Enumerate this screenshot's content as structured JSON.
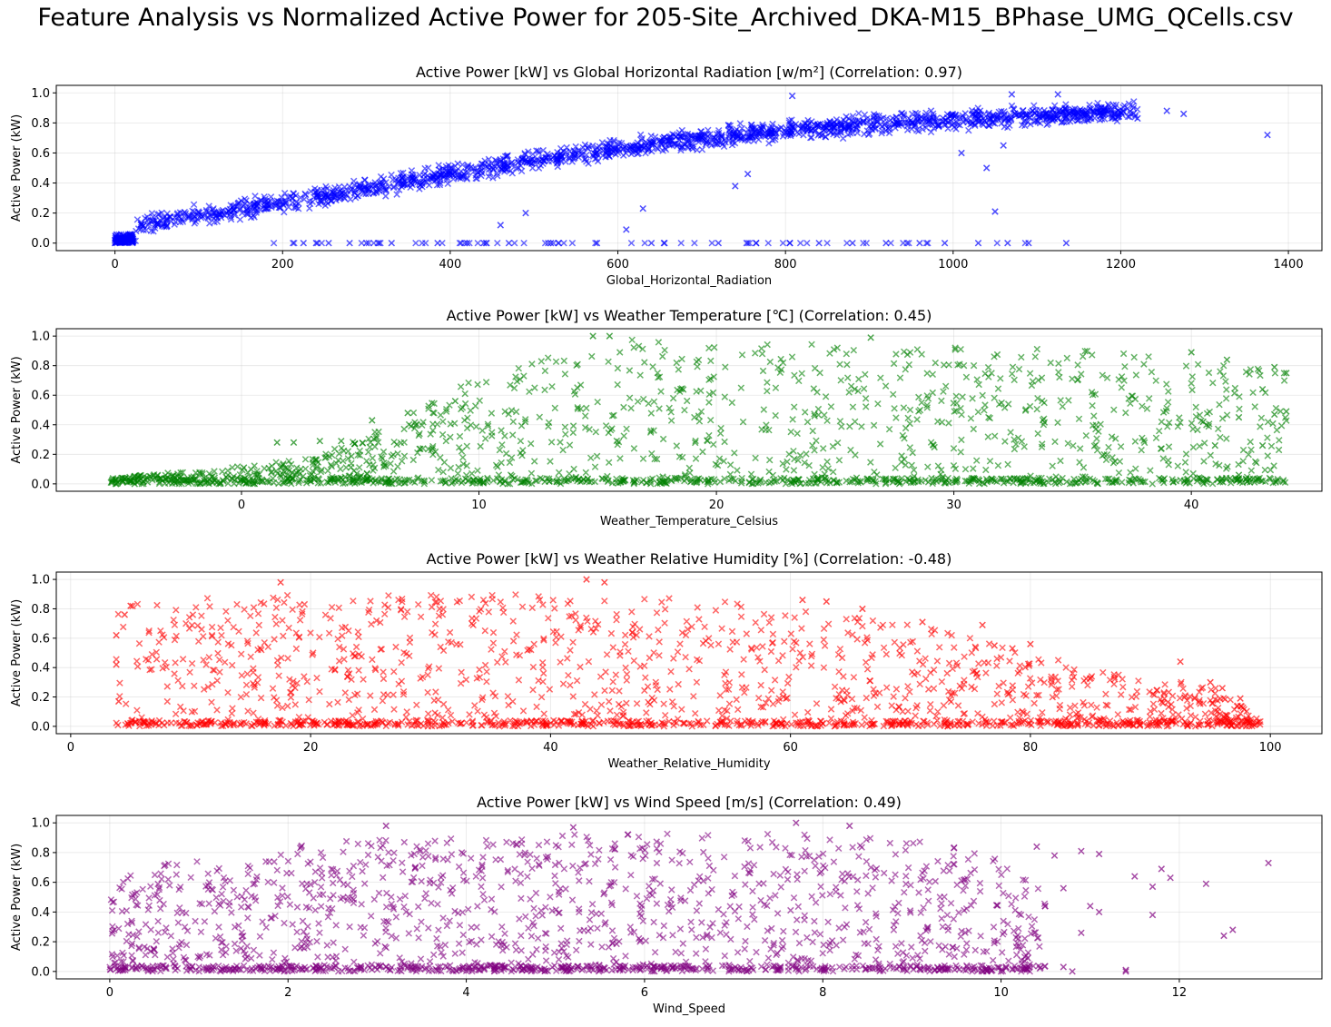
{
  "figure": {
    "suptitle": "Feature Analysis vs Normalized Active Power for 205-Site_Archived_DKA-M15_BPhase_UMG_QCells.csv"
  },
  "chart_data": [
    {
      "type": "scatter",
      "title": "Active Power [kW] vs Global Horizontal Radiation [w/m²] (Correlation: 0.97)",
      "xlabel": "Global_Horizontal_Radiation",
      "ylabel": "Active Power (kW)",
      "color": "#0000ff",
      "marker": "x",
      "grid": true,
      "xlim": [
        -70,
        1440
      ],
      "ylim": [
        -0.05,
        1.05
      ],
      "xticks": [
        0,
        200,
        400,
        600,
        800,
        1000,
        1200,
        1400
      ],
      "yticks": [
        0.0,
        0.2,
        0.4,
        0.6,
        0.8,
        1.0
      ],
      "ytick_labels": [
        "0.0",
        "0.2",
        "0.4",
        "0.6",
        "0.8",
        "1.0"
      ],
      "band": {
        "x_range": [
          0,
          1220
        ],
        "center": [
          [
            0,
            0.0
          ],
          [
            25,
            0.12
          ],
          [
            100,
            0.18
          ],
          [
            200,
            0.27
          ],
          [
            300,
            0.36
          ],
          [
            400,
            0.46
          ],
          [
            500,
            0.55
          ],
          [
            600,
            0.63
          ],
          [
            700,
            0.7
          ],
          [
            800,
            0.75
          ],
          [
            900,
            0.79
          ],
          [
            1000,
            0.82
          ],
          [
            1100,
            0.85
          ],
          [
            1200,
            0.87
          ]
        ],
        "spread": 0.09
      },
      "outliers": [
        [
          808,
          0.98
        ],
        [
          1125,
          0.99
        ],
        [
          1070,
          0.99
        ],
        [
          1255,
          0.88
        ],
        [
          1275,
          0.86
        ],
        [
          1375,
          0.72
        ],
        [
          1040,
          0.5
        ],
        [
          1050,
          0.21
        ],
        [
          755,
          0.46
        ],
        [
          740,
          0.38
        ],
        [
          630,
          0.23
        ],
        [
          610,
          0.09
        ],
        [
          460,
          0.12
        ],
        [
          490,
          0.2
        ],
        [
          1010,
          0.6
        ],
        [
          1060,
          0.65
        ],
        [
          1220,
          0.83
        ],
        [
          0,
          0.02
        ],
        [
          0,
          0.0
        ],
        [
          225,
          0.0
        ],
        [
          240,
          0.0
        ],
        [
          255,
          0.0
        ],
        [
          280,
          0.0
        ],
        [
          300,
          0.0
        ],
        [
          330,
          0.0
        ],
        [
          385,
          0.0
        ],
        [
          420,
          0.0
        ],
        [
          440,
          0.0
        ],
        [
          470,
          0.0
        ],
        [
          520,
          0.0
        ],
        [
          575,
          0.0
        ],
        [
          640,
          0.0
        ],
        [
          655,
          0.0
        ],
        [
          720,
          0.0
        ],
        [
          765,
          0.0
        ],
        [
          805,
          0.0
        ],
        [
          840,
          0.0
        ],
        [
          880,
          0.0
        ],
        [
          920,
          0.0
        ],
        [
          960,
          0.0
        ],
        [
          990,
          0.0
        ],
        [
          1030,
          0.0
        ],
        [
          1065,
          0.0
        ],
        [
          1090,
          0.0
        ],
        [
          1135,
          0.0
        ]
      ],
      "stripe": {
        "x_range": [
          180,
          1090
        ],
        "y": 0.0
      }
    },
    {
      "type": "scatter",
      "title": "Active Power [kW] vs Weather Temperature [℃] (Correlation: 0.45)",
      "xlabel": "Weather_Temperature_Celsius",
      "ylabel": "Active Power (kW)",
      "color": "#008000",
      "marker": "x",
      "grid": true,
      "xlim": [
        -7.8,
        45.5
      ],
      "ylim": [
        -0.05,
        1.05
      ],
      "xticks": [
        0,
        10,
        20,
        30,
        40
      ],
      "yticks": [
        0.0,
        0.2,
        0.4,
        0.6,
        0.8,
        1.0
      ],
      "ytick_labels": [
        "0.0",
        "0.2",
        "0.4",
        "0.6",
        "0.8",
        "1.0"
      ],
      "envelope": [
        [
          -5.5,
          0.04
        ],
        [
          -2,
          0.09
        ],
        [
          0,
          0.12
        ],
        [
          3,
          0.18
        ],
        [
          6,
          0.38
        ],
        [
          8,
          0.55
        ],
        [
          10,
          0.74
        ],
        [
          12,
          0.85
        ],
        [
          14,
          0.95
        ],
        [
          16,
          0.98
        ],
        [
          20,
          0.96
        ],
        [
          30,
          0.93
        ],
        [
          38,
          0.9
        ],
        [
          40,
          0.86
        ],
        [
          42,
          0.8
        ],
        [
          44,
          0.75
        ]
      ],
      "outliers": [
        [
          14.8,
          1.0
        ],
        [
          15.5,
          1.0
        ],
        [
          26.5,
          0.99
        ],
        [
          40.0,
          0.89
        ],
        [
          41.5,
          0.84
        ],
        [
          43.5,
          0.79
        ],
        [
          44.0,
          0.75
        ],
        [
          43.0,
          0.64
        ],
        [
          44.0,
          0.49
        ],
        [
          43.5,
          0.47
        ],
        [
          42.0,
          0.45
        ],
        [
          40.5,
          0.42
        ],
        [
          43.0,
          0.26
        ],
        [
          42.0,
          0.06
        ],
        [
          41.0,
          0.26
        ],
        [
          -5.3,
          0.03
        ],
        [
          -5.0,
          0.01
        ],
        [
          -4.5,
          0.0
        ],
        [
          0.1,
          0.11
        ],
        [
          1.5,
          0.28
        ],
        [
          2.2,
          0.28
        ],
        [
          3.3,
          0.29
        ],
        [
          4.2,
          0.29
        ],
        [
          5.5,
          0.43
        ],
        [
          7.0,
          0.48
        ],
        [
          9.0,
          0.56
        ]
      ],
      "x_range": [
        -5.5,
        44
      ]
    },
    {
      "type": "scatter",
      "title": "Active Power [kW] vs Weather Relative Humidity [%] (Correlation: -0.48)",
      "xlabel": "Weather_Relative_Humidity",
      "ylabel": "Active Power (kW)",
      "color": "#ff0000",
      "marker": "x",
      "grid": true,
      "xlim": [
        -1.2,
        104.3
      ],
      "ylim": [
        -0.05,
        1.05
      ],
      "xticks": [
        0,
        20,
        40,
        60,
        80,
        100
      ],
      "yticks": [
        0.0,
        0.2,
        0.4,
        0.6,
        0.8,
        1.0
      ],
      "ytick_labels": [
        "0.0",
        "0.2",
        "0.4",
        "0.6",
        "0.8",
        "1.0"
      ],
      "envelope": [
        [
          4,
          0.85
        ],
        [
          6,
          0.88
        ],
        [
          20,
          0.9
        ],
        [
          40,
          0.9
        ],
        [
          48,
          0.88
        ],
        [
          55,
          0.85
        ],
        [
          60,
          0.8
        ],
        [
          65,
          0.75
        ],
        [
          70,
          0.7
        ],
        [
          75,
          0.6
        ],
        [
          80,
          0.5
        ],
        [
          85,
          0.4
        ],
        [
          90,
          0.32
        ],
        [
          95,
          0.3
        ],
        [
          99,
          0.05
        ]
      ],
      "outliers": [
        [
          17.5,
          0.98
        ],
        [
          43.0,
          1.0
        ],
        [
          44.5,
          0.98
        ],
        [
          61.0,
          0.86
        ],
        [
          63.0,
          0.85
        ],
        [
          66.0,
          0.8
        ],
        [
          71.0,
          0.71
        ],
        [
          76.0,
          0.69
        ],
        [
          77.0,
          0.55
        ],
        [
          78.5,
          0.53
        ],
        [
          80.0,
          0.56
        ],
        [
          92.5,
          0.44
        ],
        [
          95.0,
          0.3
        ],
        [
          96.0,
          0.26
        ],
        [
          97.5,
          0.19
        ],
        [
          3.8,
          0.62
        ],
        [
          3.8,
          0.42
        ],
        [
          4.0,
          0.17
        ],
        [
          5.0,
          0.82
        ],
        [
          4.5,
          0.76
        ]
      ],
      "x_range": [
        3.8,
        99.2
      ]
    },
    {
      "type": "scatter",
      "title": "Active Power [kW] vs Wind Speed [m/s] (Correlation: 0.49)",
      "xlabel": "Wind_Speed",
      "ylabel": "Active Power (kW)",
      "color": "#800080",
      "marker": "x",
      "grid": true,
      "xlim": [
        -0.6,
        13.6
      ],
      "ylim": [
        -0.05,
        1.05
      ],
      "xticks": [
        0,
        2,
        4,
        6,
        8,
        10,
        12
      ],
      "yticks": [
        0.0,
        0.2,
        0.4,
        0.6,
        0.8,
        1.0
      ],
      "ytick_labels": [
        "0.0",
        "0.2",
        "0.4",
        "0.6",
        "0.8",
        "1.0"
      ],
      "envelope": [
        [
          0,
          0.55
        ],
        [
          0.3,
          0.7
        ],
        [
          1.0,
          0.75
        ],
        [
          1.5,
          0.72
        ],
        [
          2.0,
          0.85
        ],
        [
          2.5,
          0.88
        ],
        [
          4.0,
          0.92
        ],
        [
          6.0,
          0.93
        ],
        [
          7.5,
          0.93
        ],
        [
          8.5,
          0.9
        ],
        [
          9.0,
          0.88
        ],
        [
          9.5,
          0.85
        ],
        [
          10.0,
          0.75
        ],
        [
          10.5,
          0.55
        ]
      ],
      "outliers": [
        [
          3.1,
          0.98
        ],
        [
          5.2,
          0.97
        ],
        [
          7.7,
          1.0
        ],
        [
          8.3,
          0.98
        ],
        [
          10.4,
          0.84
        ],
        [
          10.6,
          0.78
        ],
        [
          10.9,
          0.81
        ],
        [
          11.1,
          0.79
        ],
        [
          11.5,
          0.64
        ],
        [
          11.7,
          0.57
        ],
        [
          11.8,
          0.69
        ],
        [
          11.9,
          0.63
        ],
        [
          12.3,
          0.59
        ],
        [
          13.0,
          0.73
        ],
        [
          12.5,
          0.24
        ],
        [
          12.6,
          0.28
        ],
        [
          11.7,
          0.38
        ],
        [
          11.0,
          0.44
        ],
        [
          11.1,
          0.4
        ],
        [
          10.7,
          0.56
        ],
        [
          10.9,
          0.26
        ],
        [
          10.8,
          0.0
        ],
        [
          11.4,
          0.0
        ],
        [
          11.4,
          0.01
        ],
        [
          10.7,
          0.03
        ],
        [
          10.3,
          0.09
        ],
        [
          10.0,
          0.0
        ],
        [
          9.8,
          0.0
        ]
      ],
      "x_range": [
        0,
        10.5
      ]
    }
  ]
}
